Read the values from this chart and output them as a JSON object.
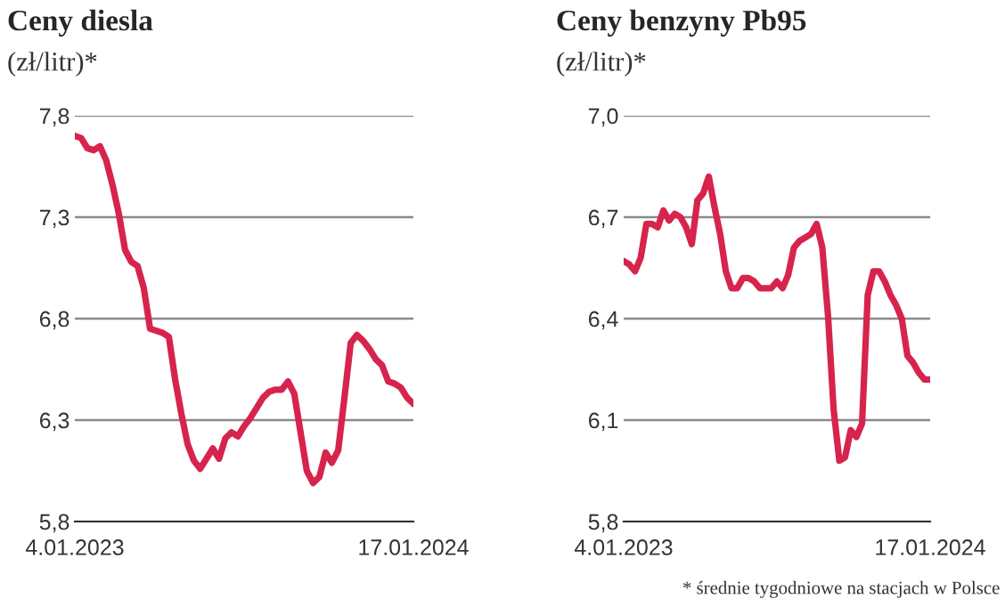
{
  "chart_data": [
    {
      "type": "line",
      "title": "Ceny diesla",
      "subtitle": "(zł/litr)*",
      "categories": [
        "4.01.2023",
        null,
        null,
        null,
        null,
        null,
        null,
        null,
        null,
        null,
        null,
        null,
        null,
        null,
        null,
        null,
        null,
        null,
        null,
        null,
        null,
        null,
        null,
        null,
        null,
        null,
        null,
        null,
        null,
        null,
        null,
        null,
        null,
        null,
        null,
        null,
        null,
        null,
        null,
        null,
        null,
        null,
        null,
        null,
        null,
        null,
        null,
        null,
        null,
        null,
        null,
        null,
        null,
        null,
        "17.01.2024"
      ],
      "series": [
        {
          "color": "#d6244d",
          "values": [
            7.7,
            7.69,
            7.64,
            7.63,
            7.65,
            7.58,
            7.46,
            7.32,
            7.14,
            7.08,
            7.06,
            6.95,
            6.75,
            6.74,
            6.73,
            6.71,
            6.5,
            6.33,
            6.18,
            6.1,
            6.06,
            6.11,
            6.16,
            6.11,
            6.21,
            6.24,
            6.22,
            6.27,
            6.31,
            6.36,
            6.41,
            6.44,
            6.45,
            6.45,
            6.49,
            6.43,
            6.24,
            6.05,
            5.99,
            6.02,
            6.14,
            6.09,
            6.15,
            6.41,
            6.68,
            6.72,
            6.69,
            6.65,
            6.6,
            6.57,
            6.49,
            6.48,
            6.46,
            6.41,
            6.38
          ]
        }
      ],
      "ylim": [
        5.8,
        7.8
      ],
      "yticks": [
        {
          "value": 5.8,
          "label": "5,8"
        },
        {
          "value": 6.3,
          "label": "6,3"
        },
        {
          "value": 6.8,
          "label": "6,8"
        },
        {
          "value": 7.3,
          "label": "7,3"
        },
        {
          "value": 7.8,
          "label": "7,8"
        }
      ],
      "grid": "y"
    },
    {
      "type": "line",
      "title": "Ceny benzyny Pb95",
      "subtitle": "(zł/litr)*",
      "categories": [
        "4.01.2023",
        null,
        null,
        null,
        null,
        null,
        null,
        null,
        null,
        null,
        null,
        null,
        null,
        null,
        null,
        null,
        null,
        null,
        null,
        null,
        null,
        null,
        null,
        null,
        null,
        null,
        null,
        null,
        null,
        null,
        null,
        null,
        null,
        null,
        null,
        null,
        null,
        null,
        null,
        null,
        null,
        null,
        null,
        null,
        null,
        null,
        null,
        null,
        null,
        null,
        null,
        null,
        null,
        null,
        "17.01.2024"
      ],
      "series": [
        {
          "color": "#d6244d",
          "values": [
            6.57,
            6.56,
            6.54,
            6.58,
            6.68,
            6.68,
            6.67,
            6.72,
            6.69,
            6.71,
            6.7,
            6.67,
            6.62,
            6.75,
            6.77,
            6.82,
            6.73,
            6.65,
            6.54,
            6.49,
            6.49,
            6.52,
            6.52,
            6.51,
            6.49,
            6.49,
            6.49,
            6.51,
            6.49,
            6.53,
            6.61,
            6.63,
            6.64,
            6.65,
            6.68,
            6.61,
            6.41,
            6.13,
            5.98,
            5.99,
            6.07,
            6.05,
            6.09,
            6.47,
            6.54,
            6.54,
            6.51,
            6.47,
            6.44,
            6.4,
            6.29,
            6.27,
            6.24,
            6.22,
            6.22
          ]
        }
      ],
      "ylim": [
        5.8,
        7.0
      ],
      "yticks": [
        {
          "value": 5.8,
          "label": "5,8"
        },
        {
          "value": 6.1,
          "label": "6,1"
        },
        {
          "value": 6.4,
          "label": "6,4"
        },
        {
          "value": 6.7,
          "label": "6,7"
        },
        {
          "value": 7.0,
          "label": "7,0"
        }
      ],
      "grid": "y",
      "annotations": [
        "* średnie tygodniowe na stacjach w Polsce"
      ]
    }
  ]
}
